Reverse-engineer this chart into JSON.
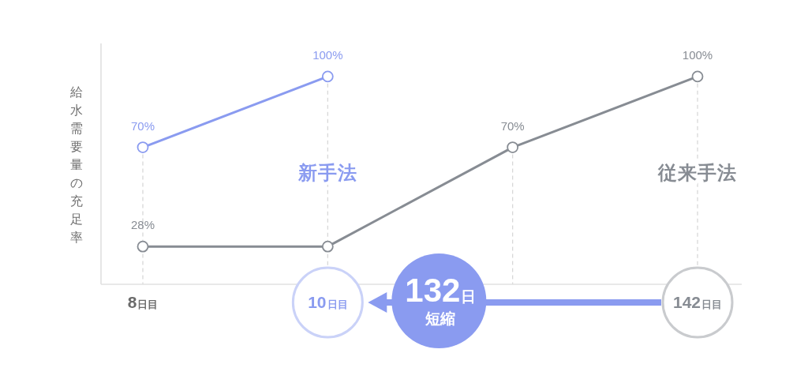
{
  "chart_data": {
    "type": "line",
    "ylabel": "給水需要量の充足率",
    "categories": [
      "8日目",
      "10日目",
      null,
      "142日目"
    ],
    "series": [
      {
        "name": "新手法",
        "color": "#8a9bf0",
        "values": [
          70,
          100,
          null,
          null
        ],
        "value_labels": [
          "70%",
          "100%",
          null,
          null
        ]
      },
      {
        "name": "従来手法",
        "color": "#878c93",
        "values": [
          28,
          28,
          70,
          100
        ],
        "value_labels": [
          "28%",
          null,
          "70%",
          "100%"
        ]
      }
    ],
    "ylim": [
      12,
      114
    ],
    "tick_labels": "x",
    "grid": "x",
    "marker": "circle",
    "line_style": "solid",
    "annotations": [
      "132日",
      "短縮"
    ]
  }
}
